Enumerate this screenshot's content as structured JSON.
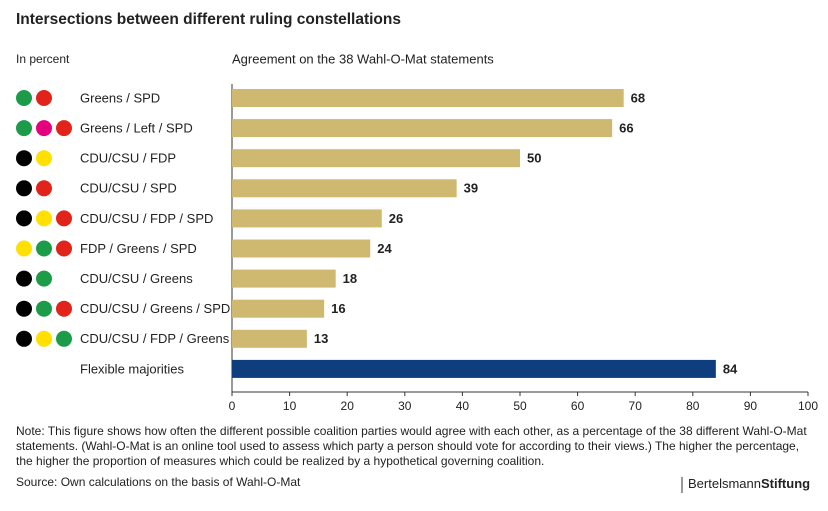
{
  "chart_data": {
    "type": "bar",
    "orientation": "horizontal",
    "title": "Intersections between different ruling constellations",
    "unit_label": "In percent",
    "subtitle": "Agreement on the 38 Wahl-O-Mat statements",
    "categories": [
      "Greens / SPD",
      "Greens / Left / SPD",
      "CDU/CSU / FDP",
      "CDU/CSU / SPD",
      "CDU/CSU / FDP / SPD",
      "FDP / Greens / SPD",
      "CDU/CSU / Greens",
      "CDU/CSU / Greens / SPD",
      "CDU/CSU / FDP / Greens",
      "Flexible majorities"
    ],
    "values": [
      68,
      66,
      50,
      39,
      26,
      24,
      18,
      16,
      13,
      84
    ],
    "colors": [
      "#cfb86f",
      "#cfb86f",
      "#cfb86f",
      "#cfb86f",
      "#cfb86f",
      "#cfb86f",
      "#cfb86f",
      "#cfb86f",
      "#cfb86f",
      "#0e3e7e"
    ],
    "party_colors": [
      [
        "#1c9b48",
        "#e2231a"
      ],
      [
        "#1c9b48",
        "#e5007d",
        "#e2231a"
      ],
      [
        "#000000",
        "#ffe000"
      ],
      [
        "#000000",
        "#e2231a"
      ],
      [
        "#000000",
        "#ffe000",
        "#e2231a"
      ],
      [
        "#ffe000",
        "#1c9b48",
        "#e2231a"
      ],
      [
        "#000000",
        "#1c9b48"
      ],
      [
        "#000000",
        "#1c9b48",
        "#e2231a"
      ],
      [
        "#000000",
        "#ffe000",
        "#1c9b48"
      ],
      []
    ],
    "xlim": [
      0,
      100
    ],
    "xticks": [
      0,
      10,
      20,
      30,
      40,
      50,
      60,
      70,
      80,
      90,
      100
    ],
    "note": [
      "Note: This figure shows how often the different possible coalition parties would agree with each other, as a percentage of the 38 different Wahl-O-Mat",
      "statements. (Wahl-O-Mat is an online tool used to assess which party a person should vote for according to their views.) The higher the percentage,",
      "the higher the proportion of measures which could be realized by a hypothetical governing coalition."
    ],
    "source": "Source: Own calculations on the basis of Wahl-O-Mat",
    "logo": [
      "Bertelsmann",
      "Stiftung"
    ]
  }
}
